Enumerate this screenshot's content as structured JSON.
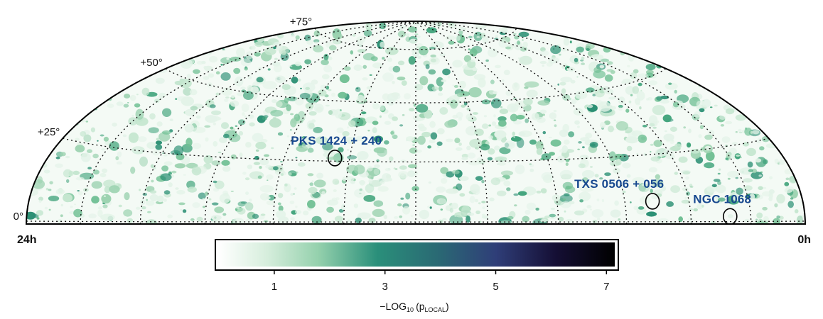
{
  "chart_data": {
    "type": "heatmap",
    "projection": "hammer-aitoff upper hemisphere",
    "ra_labels": {
      "left": "24h",
      "right": "0h"
    },
    "dec_gridlines": [
      0,
      25,
      50,
      75
    ],
    "dec_labels": [
      {
        "dec": 0,
        "text": "0°"
      },
      {
        "dec": 25,
        "text": "+25°"
      },
      {
        "dec": 50,
        "text": "+50°"
      },
      {
        "dec": 75,
        "text": "+75°"
      }
    ],
    "ra_gridlines_hours": [
      2,
      4,
      6,
      8,
      10,
      12,
      14,
      16,
      18,
      20,
      22
    ],
    "grid": true,
    "sources": [
      {
        "name": "PKS 1424 + 240",
        "ra_h": 14.45,
        "dec": 23.8
      },
      {
        "name": "TXS 0506 + 056",
        "ra_h": 5.15,
        "dec": 5.7
      },
      {
        "name": "NGC 1068",
        "ra_h": 2.71,
        "dec": -0.01
      }
    ],
    "colorbar": {
      "ticks": [
        "1",
        "3",
        "5",
        "7"
      ],
      "range": [
        0,
        7.15
      ],
      "label_main": "−LOG",
      "label_sub": "10",
      "label_paren": "(p",
      "label_sub2": "LOCAL",
      "label_end": ")",
      "colors": [
        "#ffffff",
        "#bfe2c9",
        "#6cbf94",
        "#2a8f7a",
        "#2c5f6f",
        "#2f3e78",
        "#1b1540",
        "#000000"
      ]
    }
  }
}
